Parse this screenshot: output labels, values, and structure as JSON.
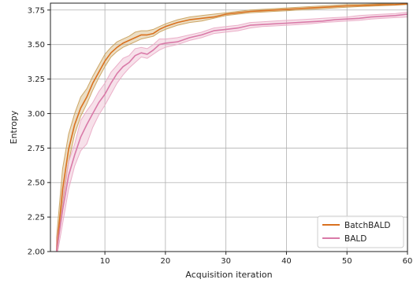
{
  "chart_data": {
    "type": "line",
    "xlabel": "Acquisition iteration",
    "ylabel": "Entropy",
    "xlim": [
      1,
      60
    ],
    "ylim": [
      2.0,
      3.8
    ],
    "xticks": [
      10,
      20,
      30,
      40,
      50,
      60
    ],
    "yticks": [
      2.0,
      2.25,
      2.5,
      2.75,
      3.0,
      3.25,
      3.5,
      3.75
    ],
    "xtick_labels": [
      "10",
      "20",
      "30",
      "40",
      "50",
      "60"
    ],
    "ytick_labels": [
      "2.00",
      "2.25",
      "2.50",
      "2.75",
      "3.00",
      "3.25",
      "3.50",
      "3.75"
    ],
    "grid": true,
    "legend_position": "bottom-right",
    "series": [
      {
        "name": "BatchBALD",
        "color": "#d9711f",
        "band_color": "#c9a05a",
        "x": [
          2,
          3,
          4,
          5,
          6,
          7,
          8,
          9,
          10,
          11,
          12,
          13,
          14,
          15,
          16,
          17,
          18,
          19,
          20,
          22,
          24,
          26,
          28,
          30,
          32,
          34,
          36,
          38,
          40,
          42,
          44,
          46,
          48,
          50,
          52,
          54,
          56,
          58,
          60
        ],
        "mean": [
          2.0,
          2.45,
          2.74,
          2.92,
          3.04,
          3.12,
          3.22,
          3.3,
          3.38,
          3.44,
          3.48,
          3.51,
          3.53,
          3.55,
          3.57,
          3.57,
          3.58,
          3.61,
          3.63,
          3.66,
          3.68,
          3.69,
          3.7,
          3.72,
          3.73,
          3.74,
          3.745,
          3.75,
          3.755,
          3.76,
          3.765,
          3.77,
          3.775,
          3.78,
          3.782,
          3.785,
          3.788,
          3.79,
          3.795
        ],
        "lower": [
          1.95,
          2.35,
          2.65,
          2.85,
          2.98,
          3.07,
          3.17,
          3.26,
          3.34,
          3.41,
          3.45,
          3.48,
          3.5,
          3.52,
          3.54,
          3.55,
          3.56,
          3.59,
          3.61,
          3.64,
          3.66,
          3.67,
          3.69,
          3.71,
          3.72,
          3.73,
          3.735,
          3.74,
          3.745,
          3.75,
          3.755,
          3.76,
          3.765,
          3.77,
          3.775,
          3.778,
          3.782,
          3.785,
          3.79
        ],
        "upper": [
          2.1,
          2.6,
          2.85,
          3.0,
          3.12,
          3.18,
          3.27,
          3.35,
          3.43,
          3.48,
          3.52,
          3.54,
          3.56,
          3.59,
          3.6,
          3.6,
          3.61,
          3.63,
          3.65,
          3.68,
          3.7,
          3.71,
          3.72,
          3.73,
          3.74,
          3.75,
          3.755,
          3.76,
          3.765,
          3.77,
          3.775,
          3.78,
          3.785,
          3.79,
          3.79,
          3.793,
          3.795,
          3.798,
          3.8
        ]
      },
      {
        "name": "BALD",
        "color": "#d97aa8",
        "band_color": "#e9a9c4",
        "x": [
          2,
          3,
          4,
          5,
          6,
          7,
          8,
          9,
          10,
          11,
          12,
          13,
          14,
          15,
          16,
          17,
          18,
          19,
          20,
          22,
          24,
          26,
          28,
          30,
          32,
          34,
          36,
          38,
          40,
          42,
          44,
          46,
          48,
          50,
          52,
          54,
          56,
          58,
          60
        ],
        "mean": [
          2.0,
          2.3,
          2.55,
          2.7,
          2.83,
          2.92,
          3.0,
          3.08,
          3.14,
          3.22,
          3.29,
          3.34,
          3.37,
          3.42,
          3.44,
          3.43,
          3.46,
          3.5,
          3.51,
          3.52,
          3.55,
          3.57,
          3.6,
          3.61,
          3.62,
          3.64,
          3.645,
          3.65,
          3.655,
          3.66,
          3.665,
          3.67,
          3.68,
          3.685,
          3.69,
          3.7,
          3.705,
          3.71,
          3.72
        ],
        "lower": [
          1.95,
          2.2,
          2.45,
          2.62,
          2.73,
          2.78,
          2.9,
          2.99,
          3.06,
          3.14,
          3.22,
          3.28,
          3.33,
          3.37,
          3.41,
          3.4,
          3.43,
          3.46,
          3.48,
          3.5,
          3.53,
          3.55,
          3.58,
          3.59,
          3.6,
          3.62,
          3.63,
          3.635,
          3.64,
          3.645,
          3.65,
          3.66,
          3.665,
          3.67,
          3.675,
          3.685,
          3.69,
          3.695,
          3.7
        ],
        "upper": [
          2.08,
          2.4,
          2.65,
          2.78,
          2.95,
          3.02,
          3.08,
          3.16,
          3.22,
          3.3,
          3.35,
          3.4,
          3.42,
          3.47,
          3.48,
          3.47,
          3.5,
          3.54,
          3.54,
          3.55,
          3.57,
          3.59,
          3.62,
          3.63,
          3.64,
          3.66,
          3.665,
          3.67,
          3.675,
          3.68,
          3.685,
          3.69,
          3.695,
          3.7,
          3.71,
          3.715,
          3.72,
          3.725,
          3.735
        ]
      }
    ]
  }
}
